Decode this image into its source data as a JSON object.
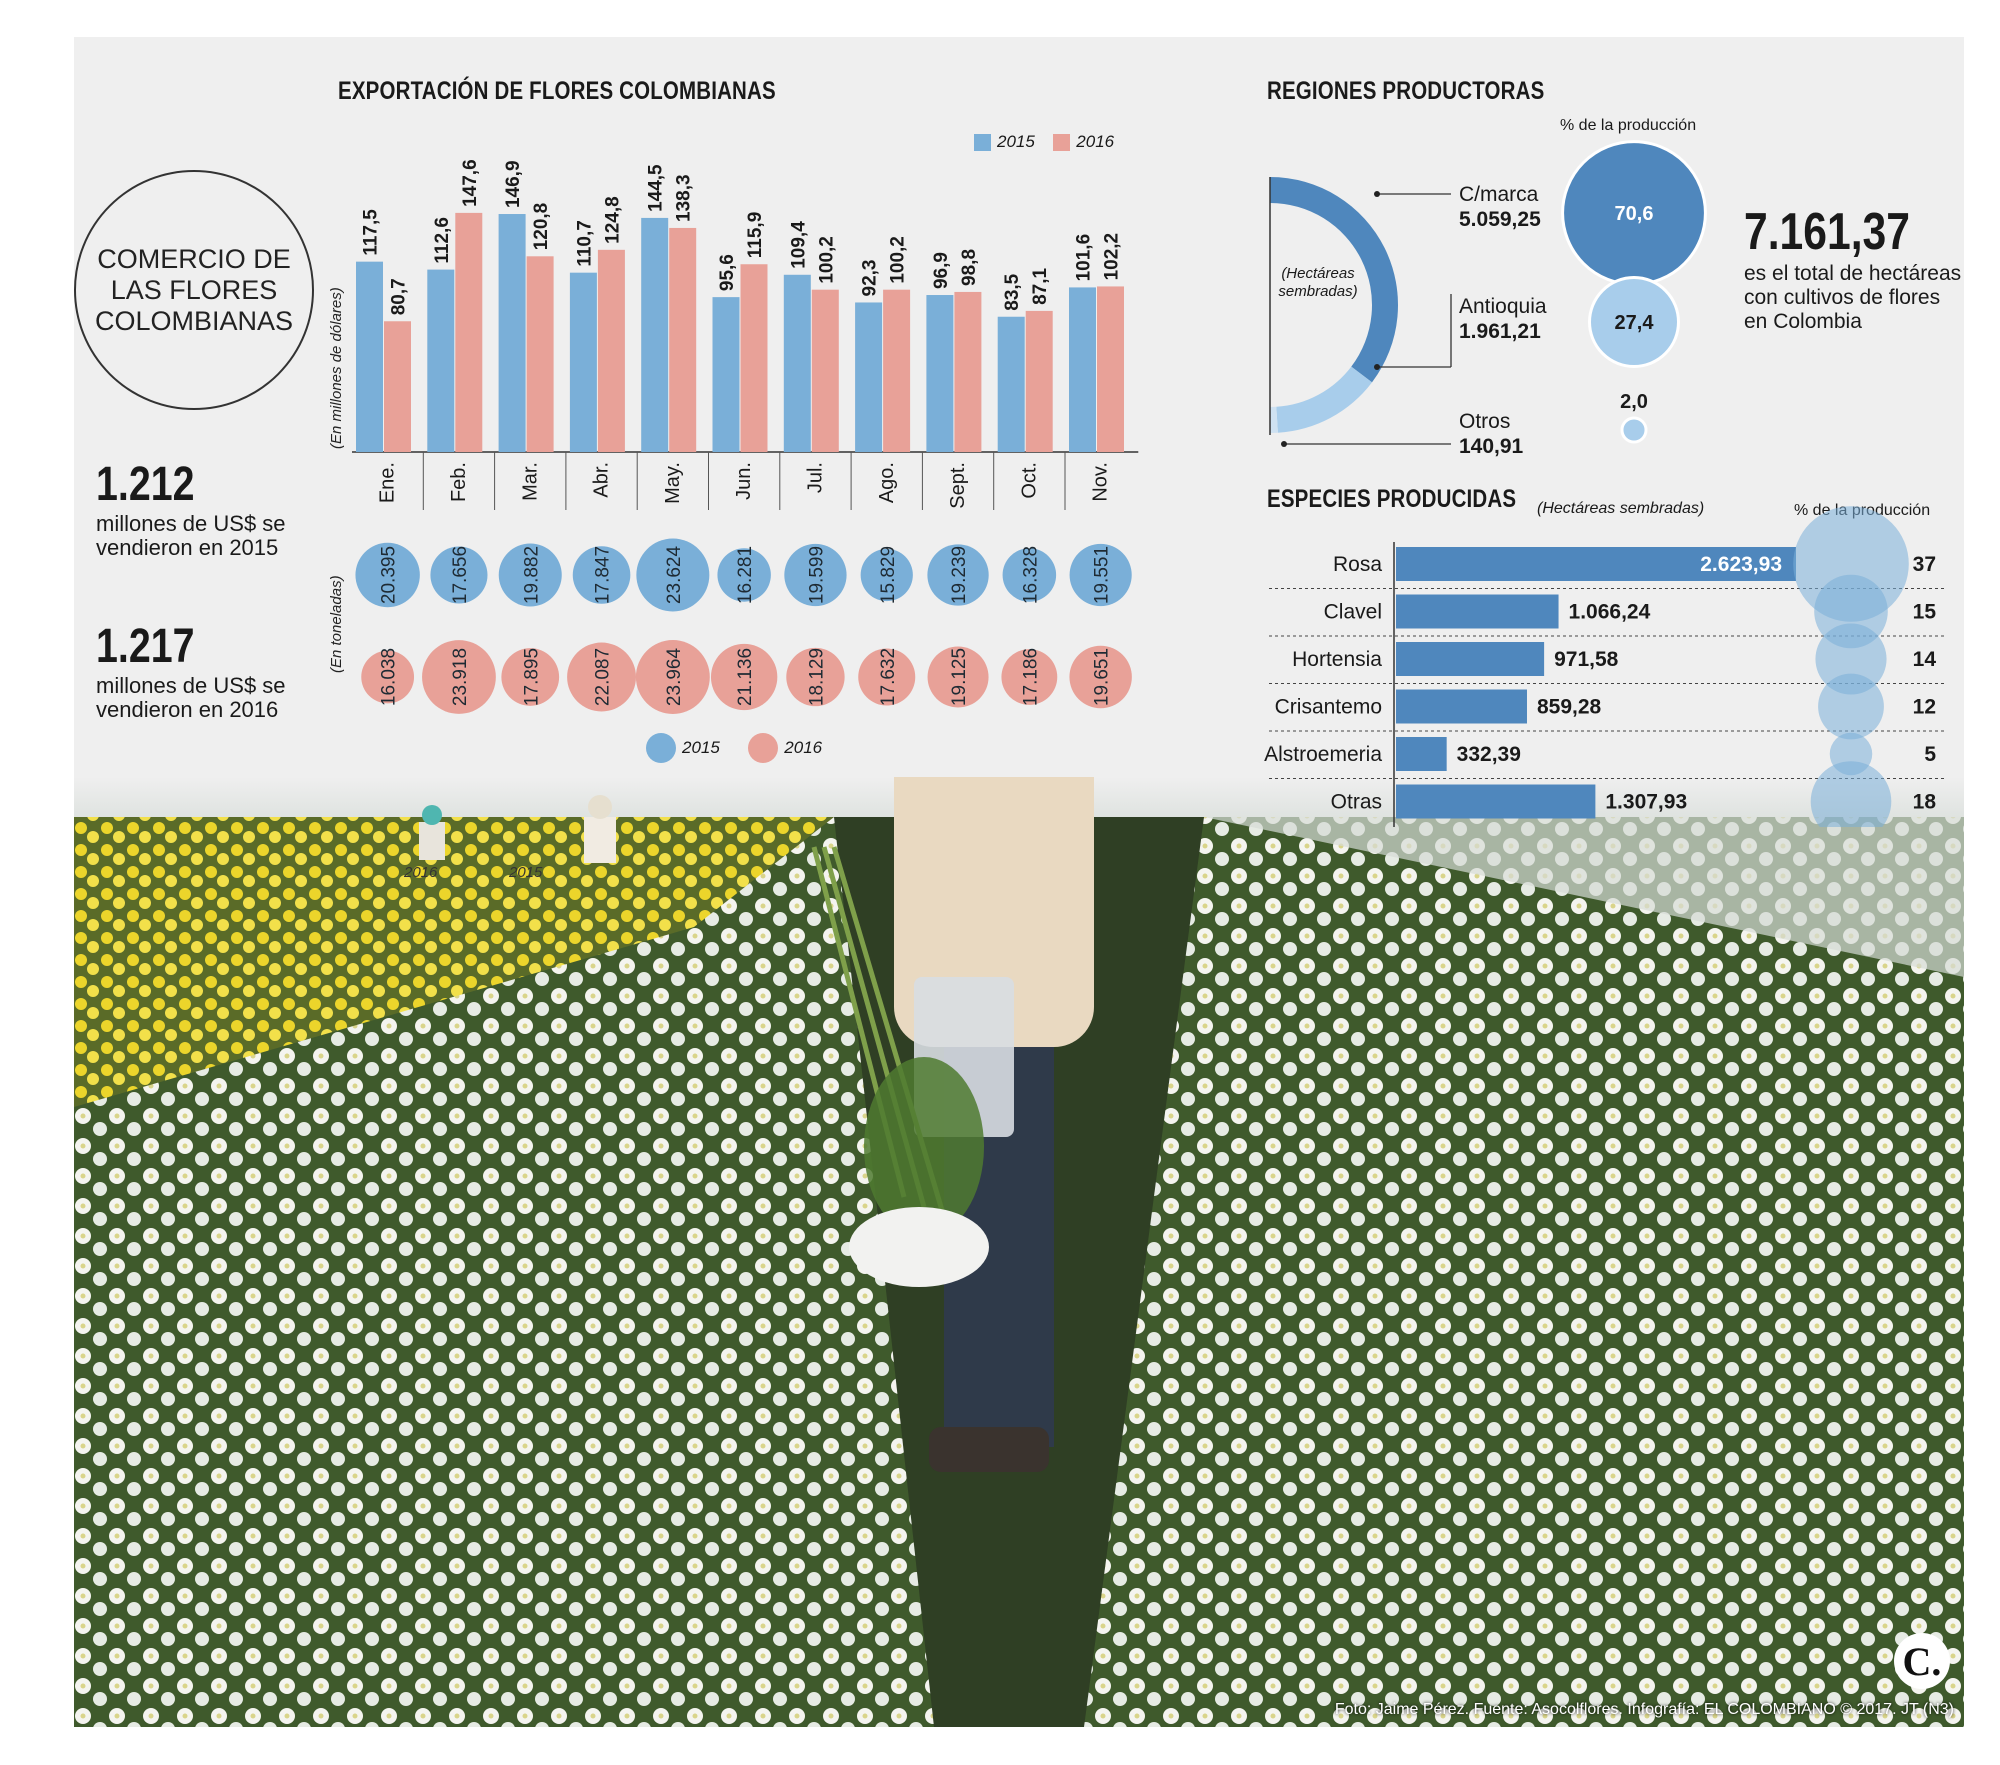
{
  "left": {
    "circle_title": "COMERCIO DE LAS FLORES COLOMBIANAS",
    "stats": [
      {
        "value": "1.212",
        "text": "millones de US$ se vendieron en 2015"
      },
      {
        "value": "1.217",
        "text": "millones de US$ se vendieron en 2016"
      }
    ]
  },
  "colors": {
    "s2015": "#7aafd8",
    "s2016": "#e8a198",
    "dark_blue": "#4f87bd",
    "light_blue": "#a8cdeb"
  },
  "chart_data": [
    {
      "type": "bar",
      "title": "EXPORTACIÓN DE FLORES COLOMBIANAS",
      "ylabel": "(En millones de dólares)",
      "ylim": [
        0,
        150
      ],
      "categories": [
        "Ene.",
        "Feb.",
        "Mar.",
        "Abr.",
        "May.",
        "Jun.",
        "Jul.",
        "Ago.",
        "Sept.",
        "Oct.",
        "Nov."
      ],
      "series": [
        {
          "name": "2015",
          "values": [
            117.5,
            112.6,
            146.9,
            110.7,
            144.5,
            95.6,
            109.4,
            92.3,
            96.9,
            83.5,
            101.6
          ],
          "labels": [
            "117,5",
            "112,6",
            "146,9",
            "110,7",
            "144,5",
            "95,6",
            "109,4",
            "92,3",
            "96,9",
            "83,5",
            "101,6"
          ]
        },
        {
          "name": "2016",
          "values": [
            80.7,
            147.6,
            120.8,
            124.8,
            138.3,
            115.9,
            100.2,
            100.2,
            98.8,
            87.1,
            102.2
          ],
          "labels": [
            "80,7",
            "147,6",
            "120,8",
            "124,8",
            "138,3",
            "115,9",
            "100,2",
            "100,2",
            "98,8",
            "87,1",
            "102,2"
          ]
        }
      ],
      "legend": "top-right"
    },
    {
      "type": "scatter",
      "ylabel": "(En toneladas)",
      "categories": [
        "Ene.",
        "Feb.",
        "Mar.",
        "Abr.",
        "May.",
        "Jun.",
        "Jul.",
        "Ago.",
        "Sept.",
        "Oct.",
        "Nov."
      ],
      "series": [
        {
          "name": "2015",
          "values": [
            20395,
            17656,
            19882,
            17847,
            23624,
            16281,
            19599,
            15829,
            19239,
            16328,
            19551
          ],
          "labels": [
            "20.395",
            "17.656",
            "19.882",
            "17.847",
            "23.624",
            "16.281",
            "19.599",
            "15.829",
            "19.239",
            "16.328",
            "19.551"
          ]
        },
        {
          "name": "2016",
          "values": [
            16038,
            23918,
            17895,
            22087,
            23964,
            21136,
            18129,
            17632,
            19125,
            17186,
            19651
          ],
          "labels": [
            "16.038",
            "23.918",
            "17.895",
            "22.087",
            "23.964",
            "21.136",
            "18.129",
            "17.632",
            "19.125",
            "17.186",
            "19.651"
          ]
        }
      ],
      "legend": "bottom"
    },
    {
      "type": "pie",
      "title": "REGIONES PRODUCTORAS",
      "center_label": "(Hectáreas sembradas)",
      "pct_header": "% de la producción",
      "slices": [
        {
          "name": "C/marca",
          "value": 5059.25,
          "label": "5.059,25",
          "pct": 70.6,
          "pct_label": "70,6"
        },
        {
          "name": "Antioquia",
          "value": 1961.21,
          "label": "1.961,21",
          "pct": 27.4,
          "pct_label": "27,4"
        },
        {
          "name": "Otros",
          "value": 140.91,
          "label": "140,91",
          "pct": 2.0,
          "pct_label": "2,0"
        }
      ]
    },
    {
      "type": "bar",
      "title": "ESPECIES PRODUCIDAS",
      "subtitle": "(Hectáreas sembradas)",
      "pct_header": "% de la producción",
      "categories": [
        "Rosa",
        "Clavel",
        "Hortensia",
        "Crisantemo",
        "Alstroemeria",
        "Otras"
      ],
      "values": [
        2623.93,
        1066.24,
        971.58,
        859.28,
        332.39,
        1307.93
      ],
      "labels": [
        "2.623,93",
        "1.066,24",
        "971,58",
        "859,28",
        "332,39",
        "1.307,93"
      ],
      "pct": [
        37,
        15,
        14,
        12,
        5,
        18
      ]
    }
  ],
  "total": {
    "value": "7.161,37",
    "text": "es el total de hectáreas con cultivos de flores en Colombia"
  },
  "photo_labels": {
    "a": "2016",
    "b": "2015"
  },
  "credit": "Foto: Jaime Pérez. Fuente: Asocolflores. Infografía: EL COLOMBIANO © 2017. JT (N3)",
  "logo": "C."
}
